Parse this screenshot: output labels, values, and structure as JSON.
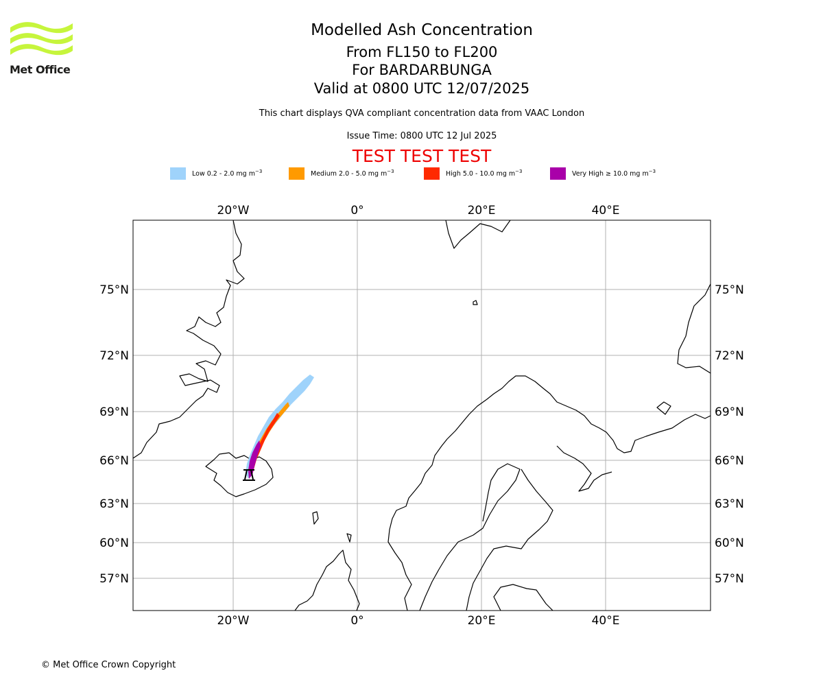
{
  "logo": {
    "text": "Met Office",
    "color": "#c6f53c"
  },
  "title": {
    "line1": "Modelled Ash Concentration",
    "line2": "From FL150 to FL200",
    "line3": "For BARDARBUNGA",
    "line4": "Valid at 0800 UTC 12/07/2025"
  },
  "info": {
    "compliance": "This chart displays QVA compliant concentration data from VAAC London",
    "issue_time": "Issue Time: 0800 UTC 12 Jul 2025",
    "test_banner": "TEST TEST TEST"
  },
  "legend": [
    {
      "label": "Low 0.2 - 2.0 mg m",
      "color": "#9fd3fb"
    },
    {
      "label": "Medium 2.0 - 5.0 mg m",
      "color": "#ff9a00"
    },
    {
      "label": "High 5.0 - 10.0 mg m",
      "color": "#ff2a00"
    },
    {
      "label": "Very High ≥ 10.0 mg m",
      "color": "#a900a9"
    }
  ],
  "legend_unit_exp": "−3",
  "map": {
    "lon_ticks": [
      "20°W",
      "0°",
      "20°E",
      "40°E"
    ],
    "lat_ticks": [
      "75°N",
      "72°N",
      "69°N",
      "66°N",
      "63°N",
      "60°N",
      "57°N"
    ],
    "volcano_symbol": "volcano-icon"
  },
  "copyright": "© Met Office Crown Copyright"
}
